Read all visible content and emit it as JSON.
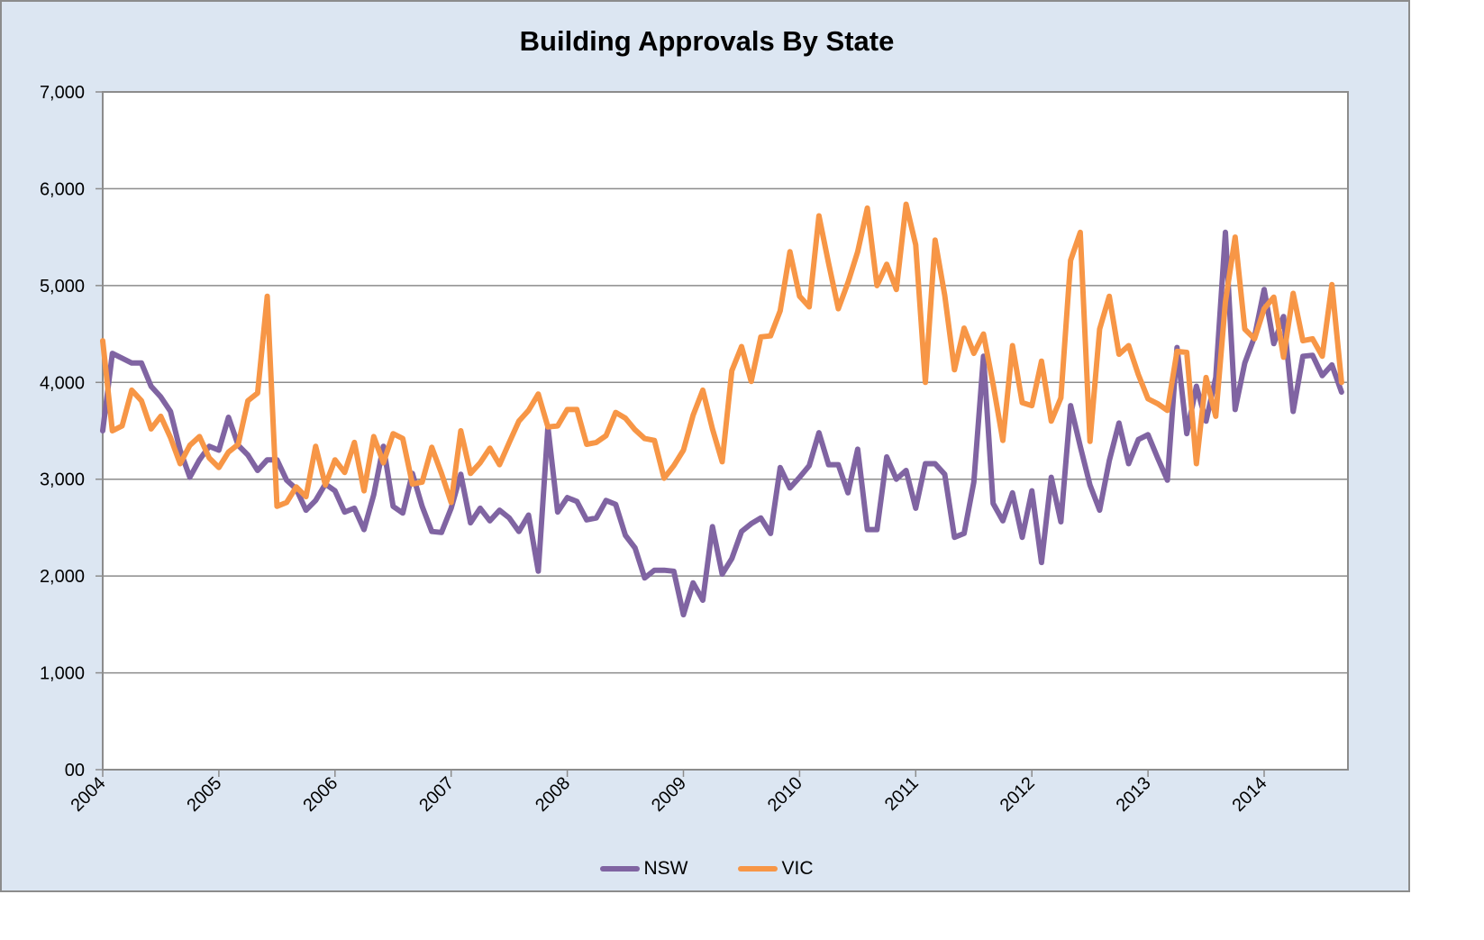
{
  "chart_data": {
    "type": "line",
    "title": "Building Approvals By State",
    "xlabel": "",
    "ylabel": "",
    "ylim": [
      0,
      7000
    ],
    "yticks": [
      0,
      1000,
      2000,
      3000,
      4000,
      5000,
      6000,
      7000
    ],
    "ytick_labels": [
      "00",
      "1,000",
      "2,000",
      "3,000",
      "4,000",
      "5,000",
      "6,000",
      "7,000"
    ],
    "x_start": "2004-01",
    "x_frequency": "monthly",
    "xtick_labels": [
      "2004",
      "2005",
      "2006",
      "2007",
      "2008",
      "2009",
      "2010",
      "2011",
      "2012",
      "2013",
      "2014"
    ],
    "grid": "horizontal",
    "legend_position": "bottom",
    "series": [
      {
        "name": "NSW",
        "color": "#8064a2",
        "values": [
          3500,
          4300,
          4250,
          4200,
          4200,
          3960,
          3850,
          3700,
          3300,
          3020,
          3200,
          3340,
          3300,
          3640,
          3350,
          3250,
          3090,
          3200,
          3200,
          2990,
          2900,
          2680,
          2780,
          2950,
          2880,
          2660,
          2700,
          2480,
          2840,
          3340,
          2720,
          2650,
          3060,
          2720,
          2460,
          2450,
          2700,
          3050,
          2550,
          2700,
          2570,
          2680,
          2600,
          2460,
          2630,
          2050,
          3540,
          2660,
          2810,
          2770,
          2580,
          2600,
          2780,
          2740,
          2420,
          2290,
          1980,
          2060,
          2060,
          2050,
          1600,
          1930,
          1750,
          2510,
          2020,
          2180,
          2460,
          2540,
          2600,
          2440,
          3120,
          2910,
          3020,
          3140,
          3480,
          3150,
          3150,
          2860,
          3310,
          2480,
          2480,
          3230,
          3000,
          3090,
          2700,
          3160,
          3160,
          3050,
          2400,
          2440,
          2970,
          4270,
          2750,
          2570,
          2860,
          2400,
          2880,
          2140,
          3020,
          2560,
          3760,
          3340,
          2940,
          2680,
          3190,
          3580,
          3160,
          3410,
          3460,
          3220,
          2990,
          4360,
          3470,
          3960,
          3600,
          4050,
          5550,
          3720,
          4200,
          4470,
          4960,
          4400,
          4680,
          3700,
          4270,
          4280,
          4070,
          4180,
          3900
        ]
      },
      {
        "name": "VIC",
        "color": "#f79646",
        "values": [
          4430,
          3500,
          3550,
          3920,
          3810,
          3520,
          3650,
          3430,
          3160,
          3350,
          3440,
          3220,
          3120,
          3280,
          3360,
          3810,
          3890,
          4890,
          2720,
          2760,
          2920,
          2820,
          3340,
          2940,
          3200,
          3070,
          3380,
          2880,
          3440,
          3170,
          3470,
          3420,
          2950,
          2970,
          3330,
          3060,
          2760,
          3500,
          3060,
          3170,
          3320,
          3150,
          3380,
          3600,
          3710,
          3880,
          3540,
          3550,
          3720,
          3720,
          3360,
          3380,
          3450,
          3690,
          3630,
          3510,
          3420,
          3400,
          3010,
          3140,
          3300,
          3660,
          3920,
          3520,
          3180,
          4120,
          4370,
          4010,
          4470,
          4480,
          4740,
          5350,
          4890,
          4780,
          5720,
          5230,
          4760,
          5030,
          5350,
          5800,
          5000,
          5220,
          4960,
          5840,
          5420,
          4000,
          5470,
          4900,
          4130,
          4560,
          4300,
          4500,
          3980,
          3400,
          4380,
          3790,
          3760,
          4220,
          3600,
          3840,
          5260,
          5550,
          3390,
          4550,
          4890,
          4290,
          4380,
          4080,
          3830,
          3780,
          3710,
          4320,
          4310,
          3160,
          4050,
          3650,
          4830,
          5500,
          4550,
          4450,
          4760,
          4880,
          4260,
          4920,
          4430,
          4450,
          4270,
          5010,
          4000
        ]
      }
    ]
  }
}
